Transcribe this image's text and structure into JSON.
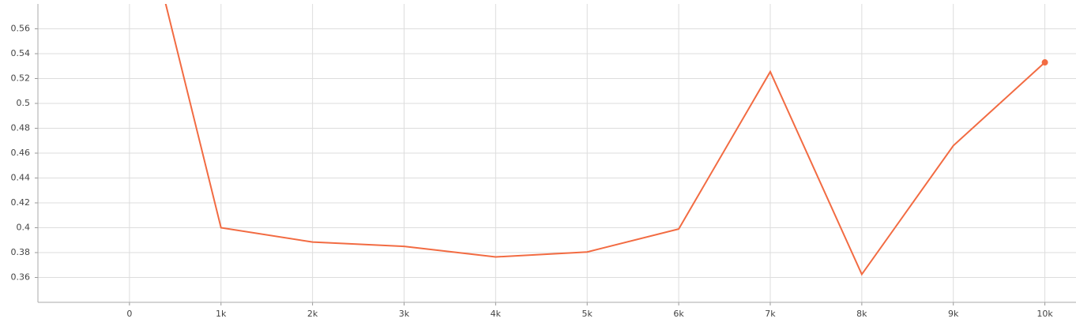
{
  "chart_data": {
    "type": "line",
    "x": [
      0,
      1000,
      2000,
      3000,
      4000,
      5000,
      6000,
      7000,
      8000,
      9000,
      10000
    ],
    "series": [
      {
        "color": "#f26b42",
        "values": [
          0.698,
          0.4,
          0.3885,
          0.385,
          0.3765,
          0.3805,
          0.399,
          0.5255,
          0.3625,
          0.466,
          0.533
        ]
      }
    ],
    "xlim": [
      -1000,
      10340
    ],
    "ylim": [
      0.34,
      0.58
    ],
    "xticks": [
      0,
      {
        "value": 1000,
        "label": "1k"
      },
      {
        "value": 2000,
        "label": "2k"
      },
      {
        "value": 3000,
        "label": "3k"
      },
      {
        "value": 4000,
        "label": "4k"
      },
      {
        "value": 5000,
        "label": "5k"
      },
      {
        "value": 6000,
        "label": "6k"
      },
      {
        "value": 7000,
        "label": "7k"
      },
      {
        "value": 8000,
        "label": "8k"
      },
      {
        "value": 9000,
        "label": "9k"
      },
      {
        "value": 10000,
        "label": "10k"
      }
    ],
    "yticks": [
      0.36,
      0.38,
      0.4,
      0.42,
      0.44,
      0.46,
      0.48,
      0.5,
      0.52,
      0.54,
      0.56
    ],
    "grid": true
  }
}
